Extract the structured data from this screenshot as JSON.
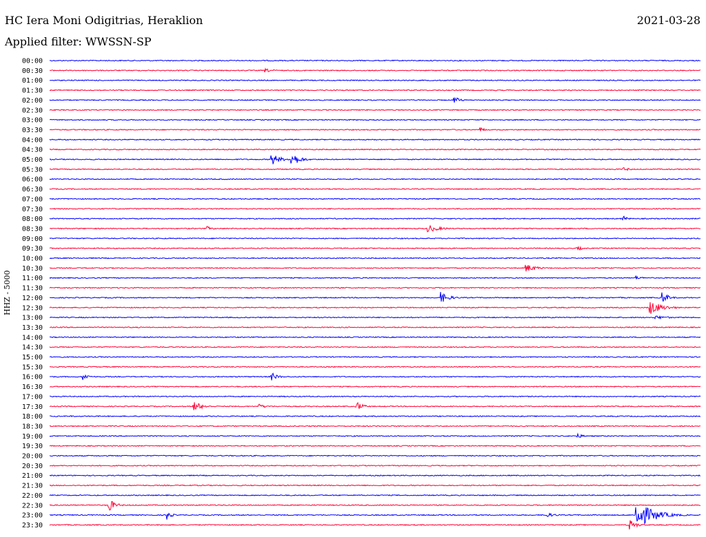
{
  "header": {
    "station": "HC Iera Moni Odigitrias, Heraklion",
    "date": "2021-03-28",
    "filter": "Applied filter: WWSSN-SP",
    "channel": "HHZ - 5000"
  },
  "chart_data": {
    "type": "line",
    "title": "HC Iera Moni Odigitrias, Heraklion",
    "ylabel": "HHZ - 5000",
    "row_labels": [
      "00:00",
      "00:30",
      "01:00",
      "01:30",
      "02:00",
      "02:30",
      "03:00",
      "03:30",
      "04:00",
      "04:30",
      "05:00",
      "05:30",
      "06:00",
      "06:30",
      "07:00",
      "07:30",
      "08:00",
      "08:30",
      "09:00",
      "09:30",
      "10:00",
      "10:30",
      "11:00",
      "11:30",
      "12:00",
      "12:30",
      "13:00",
      "13:30",
      "14:00",
      "14:30",
      "15:00",
      "15:30",
      "16:00",
      "16:30",
      "17:00",
      "17:30",
      "18:00",
      "18:30",
      "19:00",
      "19:30",
      "20:00",
      "20:30",
      "21:00",
      "21:30",
      "22:00",
      "22:30",
      "23:00",
      "23:30"
    ],
    "series_colors": [
      "#0000ff",
      "#ff0033"
    ],
    "events": [
      {
        "row": 1,
        "t": 0.33,
        "amp": 3,
        "dur": 0.05
      },
      {
        "row": 4,
        "t": 0.62,
        "amp": 6,
        "dur": 0.03
      },
      {
        "row": 7,
        "t": 0.66,
        "amp": 4,
        "dur": 0.03
      },
      {
        "row": 10,
        "t": 0.34,
        "amp": 10,
        "dur": 0.04
      },
      {
        "row": 10,
        "t": 0.37,
        "amp": 12,
        "dur": 0.04
      },
      {
        "row": 11,
        "t": 0.88,
        "amp": 3,
        "dur": 0.04
      },
      {
        "row": 16,
        "t": 0.88,
        "amp": 6,
        "dur": 0.02
      },
      {
        "row": 17,
        "t": 0.58,
        "amp": 6,
        "dur": 0.06
      },
      {
        "row": 17,
        "t": 0.24,
        "amp": 4,
        "dur": 0.03
      },
      {
        "row": 19,
        "t": 0.81,
        "amp": 5,
        "dur": 0.02
      },
      {
        "row": 21,
        "t": 0.73,
        "amp": 7,
        "dur": 0.05
      },
      {
        "row": 22,
        "t": 0.9,
        "amp": 3,
        "dur": 0.04
      },
      {
        "row": 24,
        "t": 0.6,
        "amp": 9,
        "dur": 0.04
      },
      {
        "row": 24,
        "t": 0.94,
        "amp": 10,
        "dur": 0.03
      },
      {
        "row": 25,
        "t": 0.92,
        "amp": 12,
        "dur": 0.06
      },
      {
        "row": 26,
        "t": 0.93,
        "amp": 3,
        "dur": 0.07
      },
      {
        "row": 32,
        "t": 0.05,
        "amp": 6,
        "dur": 0.03
      },
      {
        "row": 32,
        "t": 0.34,
        "amp": 7,
        "dur": 0.03
      },
      {
        "row": 35,
        "t": 0.22,
        "amp": 9,
        "dur": 0.04
      },
      {
        "row": 35,
        "t": 0.32,
        "amp": 4,
        "dur": 0.04
      },
      {
        "row": 35,
        "t": 0.47,
        "amp": 9,
        "dur": 0.03
      },
      {
        "row": 36,
        "t": 0.03,
        "amp": 3,
        "dur": 0.01
      },
      {
        "row": 38,
        "t": 0.81,
        "amp": 4,
        "dur": 0.03
      },
      {
        "row": 45,
        "t": 0.09,
        "amp": 11,
        "dur": 0.03
      },
      {
        "row": 46,
        "t": 0.18,
        "amp": 8,
        "dur": 0.02
      },
      {
        "row": 46,
        "t": 0.76,
        "amp": 4,
        "dur": 0.05
      },
      {
        "row": 46,
        "t": 0.9,
        "amp": 22,
        "dur": 0.08
      },
      {
        "row": 47,
        "t": 0.89,
        "amp": 10,
        "dur": 0.03
      }
    ]
  }
}
